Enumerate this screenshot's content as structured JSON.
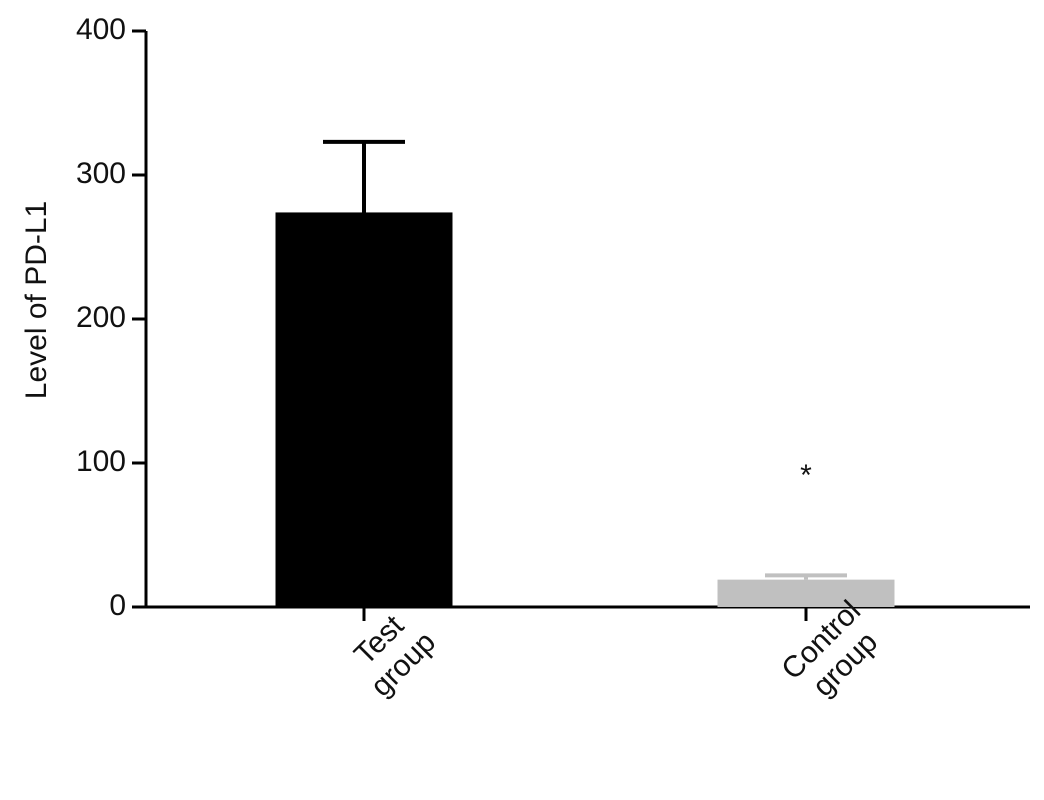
{
  "chart_data": {
    "type": "bar",
    "y_label": "Level of PD-L1",
    "categories": [
      "Test group",
      "Control group"
    ],
    "values": [
      274,
      19
    ],
    "errors": [
      49,
      3
    ],
    "colors": [
      "#000000",
      "#c0c0c0"
    ],
    "annotations": [
      "",
      "*"
    ],
    "ylim": [
      0,
      400
    ],
    "yticks": [
      0,
      100,
      200,
      300,
      400
    ]
  }
}
